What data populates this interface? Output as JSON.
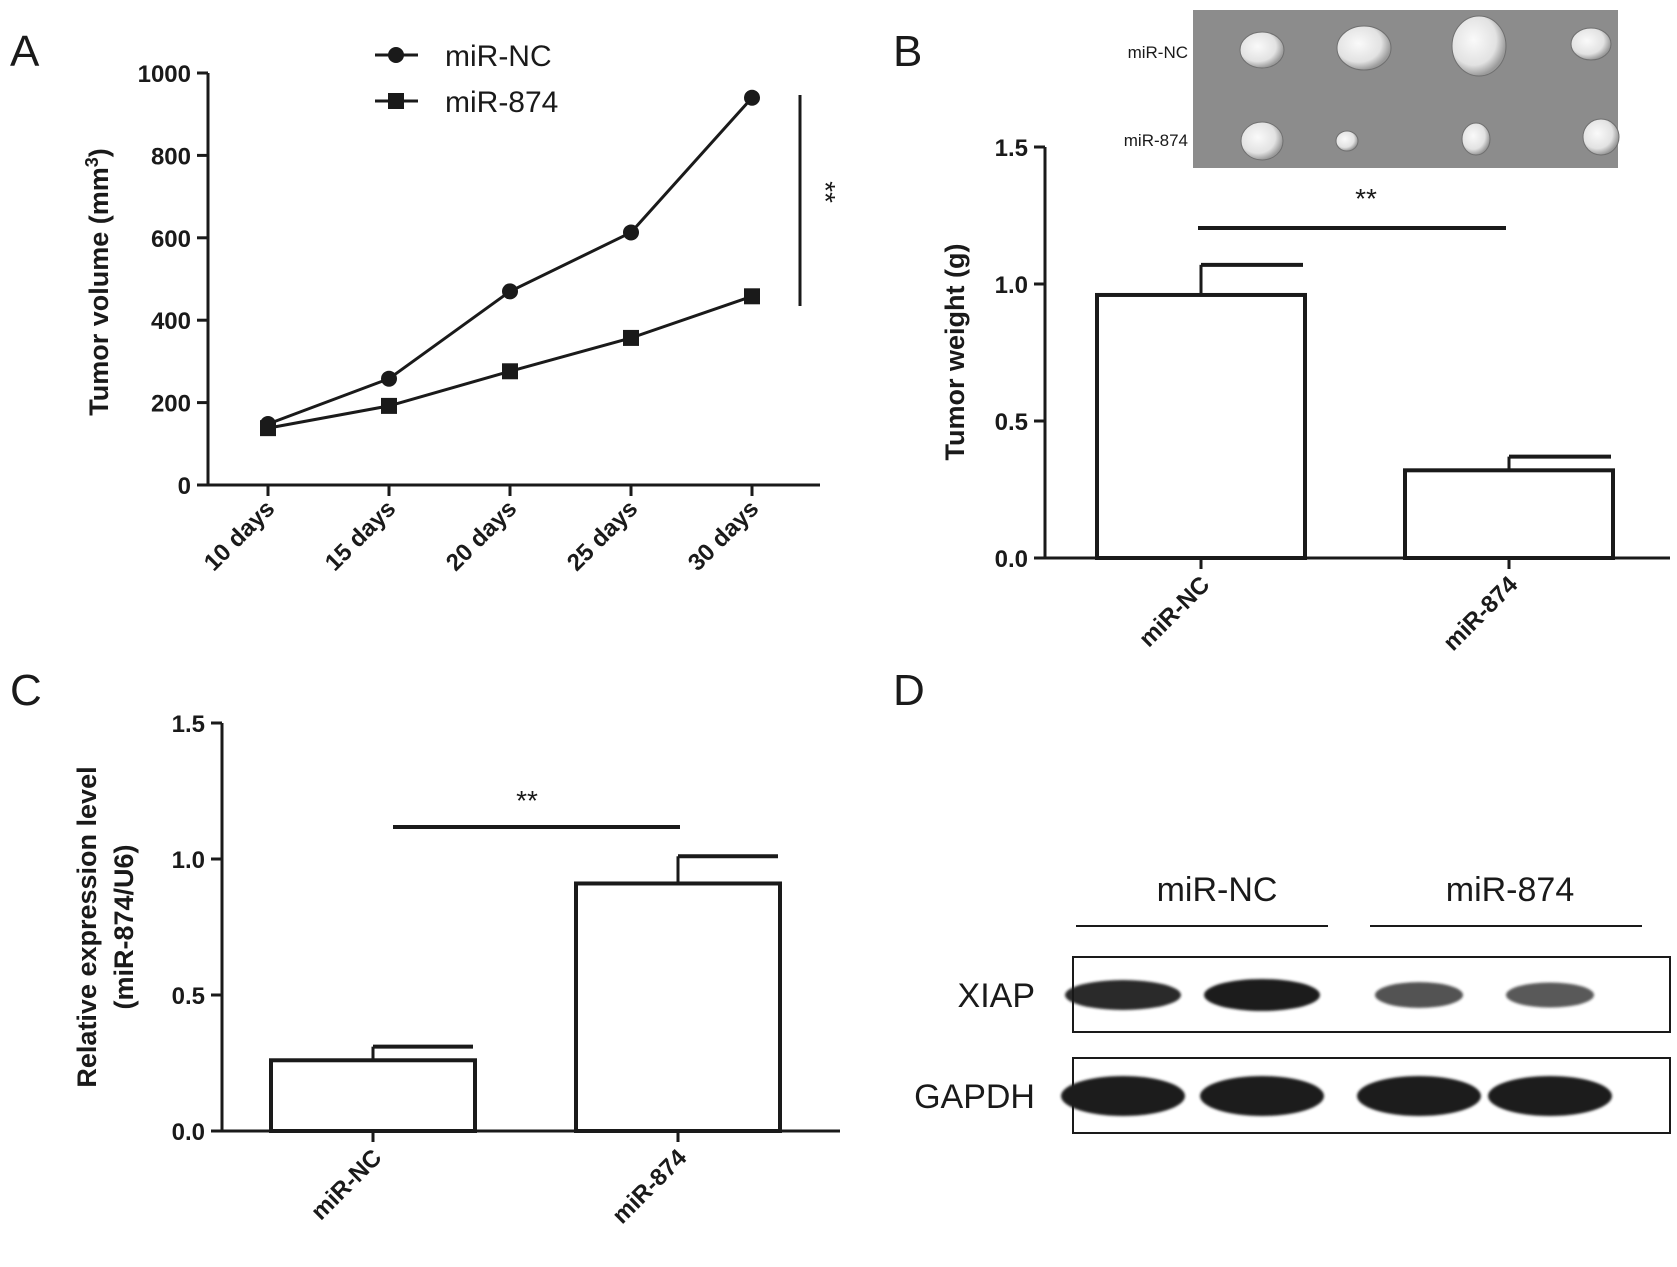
{
  "chart_data": [
    {
      "panel": "A",
      "type": "line",
      "x": [
        "10 days",
        "15 days",
        "20 days",
        "25 days",
        "30 days"
      ],
      "series": [
        {
          "name": "miR-NC",
          "marker": "circle",
          "values": [
            148,
            258,
            470,
            613,
            940
          ]
        },
        {
          "name": "miR-874",
          "marker": "square",
          "values": [
            138,
            192,
            276,
            357,
            458
          ]
        }
      ],
      "ylabel": "Tumor volume (mm",
      "ylabel_sup": "3",
      "ylabel_close": ")",
      "ylim": [
        0,
        1000
      ],
      "yticks": [
        "0",
        "200",
        "400",
        "600",
        "800",
        "1000"
      ],
      "significance": "**",
      "legend": "top-center"
    },
    {
      "panel": "B",
      "type": "bar",
      "categories": [
        "miR-NC",
        "miR-874"
      ],
      "values": [
        0.96,
        0.32
      ],
      "errors": [
        0.11,
        0.05
      ],
      "ylabel": "Tumor weight (g)",
      "ylim": [
        0,
        1.5
      ],
      "yticks": [
        "0.0",
        "0.5",
        "1.0",
        "1.5"
      ],
      "significance": "**",
      "photo_labels": [
        "miR-NC",
        "miR-874"
      ]
    },
    {
      "panel": "C",
      "type": "bar",
      "categories": [
        "miR-NC",
        "miR-874"
      ],
      "values": [
        0.26,
        0.91
      ],
      "errors": [
        0.05,
        0.1
      ],
      "ylabel_line1": "Relative expression level",
      "ylabel_line2": "(miR-874/U6)",
      "ylim": [
        0,
        1.5
      ],
      "yticks": [
        "0.0",
        "0.5",
        "1.0",
        "1.5"
      ],
      "significance": "**"
    }
  ],
  "panel_letters": {
    "a": "A",
    "b": "B",
    "c": "C",
    "d": "D"
  },
  "western_blot": {
    "groups": [
      "miR-NC",
      "miR-874"
    ],
    "rows": [
      {
        "label": "XIAP",
        "intensities": [
          0.85,
          1.0,
          0.55,
          0.5
        ]
      },
      {
        "label": "GAPDH",
        "intensities": [
          1.0,
          1.0,
          1.0,
          1.0
        ]
      }
    ]
  }
}
